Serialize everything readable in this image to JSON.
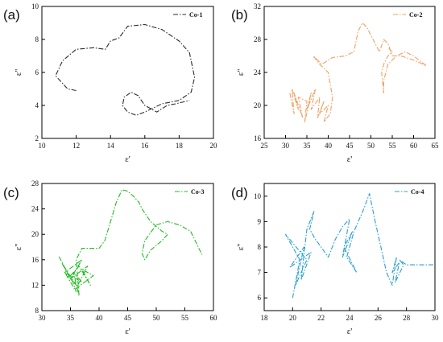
{
  "chart_data": [
    {
      "type": "line",
      "panel_label": "(a)",
      "xlabel": "ε'",
      "ylabel": "ε''",
      "xlim": [
        10,
        20
      ],
      "ylim": [
        2,
        10
      ],
      "xticks": [
        10,
        12,
        14,
        16,
        18,
        20
      ],
      "yticks": [
        2,
        4,
        6,
        8,
        10
      ],
      "series": [
        {
          "name": "Co-1",
          "color": "#2b2b2b",
          "x": [
            12.0,
            11.5,
            10.8,
            11.2,
            12.0,
            13.0,
            13.7,
            14.0,
            14.5,
            15.0,
            16.0,
            17.0,
            18.0,
            18.6,
            18.9,
            18.7,
            18.0,
            17.0,
            16.0,
            15.5,
            15.0,
            14.7,
            14.8,
            15.2,
            15.6,
            16.0,
            16.7,
            17.3,
            17.8,
            18.2,
            18.6
          ],
          "y": [
            4.9,
            5.0,
            5.8,
            6.7,
            7.4,
            7.5,
            7.4,
            7.9,
            8.1,
            8.8,
            8.9,
            8.6,
            7.9,
            7.2,
            5.7,
            4.8,
            4.3,
            4.1,
            3.6,
            3.4,
            3.6,
            4.0,
            4.5,
            4.8,
            4.6,
            4.0,
            3.6,
            4.0,
            4.1,
            4.2,
            4.3
          ]
        }
      ]
    },
    {
      "type": "line",
      "panel_label": "(b)",
      "xlabel": "ε'",
      "ylabel": "ε''",
      "xlim": [
        25,
        65
      ],
      "ylim": [
        16,
        32
      ],
      "xticks": [
        25,
        30,
        35,
        40,
        45,
        50,
        55,
        60,
        65
      ],
      "yticks": [
        16,
        20,
        24,
        28,
        32
      ],
      "series": [
        {
          "name": "Co-2",
          "color": "#f0a060",
          "x": [
            31,
            32,
            31.5,
            33,
            32,
            34,
            33,
            35,
            34.5,
            36,
            35,
            37,
            36,
            38,
            37.5,
            39,
            38,
            40,
            39,
            40.5,
            41,
            40,
            38,
            36.5,
            38.5,
            41,
            44,
            46,
            47,
            48,
            49,
            50,
            51,
            52,
            53,
            54,
            55,
            57,
            60,
            63,
            60,
            58,
            56,
            55,
            54,
            53.5,
            53,
            53,
            52.5,
            53,
            54,
            55,
            54
          ],
          "y": [
            21.5,
            19,
            22,
            19.5,
            21.5,
            18.5,
            21,
            20.5,
            18,
            21.5,
            19.5,
            22,
            19.5,
            21,
            18.5,
            20.5,
            19,
            20,
            18,
            19,
            21,
            24,
            25,
            26,
            25,
            25.8,
            26,
            26.5,
            29,
            30,
            29.5,
            28.5,
            27.5,
            26.5,
            28,
            27.5,
            26,
            26,
            25.5,
            24.8,
            26,
            26.5,
            26,
            25.5,
            25,
            24,
            23,
            21.5,
            24,
            25,
            26,
            26.5,
            27
          ]
        }
      ]
    },
    {
      "type": "line",
      "panel_label": "(c)",
      "xlabel": "ε'",
      "ylabel": "ε''",
      "xlim": [
        30,
        60
      ],
      "ylim": [
        8,
        28
      ],
      "xticks": [
        30,
        35,
        40,
        45,
        50,
        55,
        60
      ],
      "yticks": [
        8,
        12,
        16,
        20,
        24,
        28
      ],
      "series": [
        {
          "name": "Co-3",
          "color": "#22bb22",
          "x": [
            33,
            35,
            33.5,
            36,
            34,
            37,
            35,
            38,
            36,
            39,
            37,
            38.5,
            36.5,
            35,
            36,
            34,
            37,
            35.5,
            36.5,
            36,
            37,
            40,
            41,
            42,
            43,
            44,
            45,
            46,
            47,
            47.5,
            49,
            51,
            52,
            51,
            49,
            48,
            47.5,
            48,
            50,
            52,
            54,
            56,
            58
          ],
          "y": [
            16.5,
            13,
            15.5,
            12,
            14,
            16,
            13,
            15,
            11.5,
            13.5,
            14.5,
            12,
            15,
            13.5,
            11,
            14,
            12.5,
            14,
            10.3,
            16,
            17.8,
            17.8,
            19,
            22,
            25,
            27,
            26.8,
            26,
            25,
            24,
            22,
            20.5,
            20,
            19,
            17.5,
            16,
            17,
            19,
            21.5,
            22,
            21.5,
            20.5,
            16.8
          ]
        }
      ]
    },
    {
      "type": "line",
      "panel_label": "(d)",
      "xlabel": "ε'",
      "ylabel": "ε''",
      "xlim": [
        18,
        30
      ],
      "ylim": [
        5.5,
        10.5
      ],
      "xticks": [
        18,
        20,
        22,
        24,
        26,
        28,
        30
      ],
      "yticks": [
        6,
        7,
        8,
        9,
        10
      ],
      "series": [
        {
          "name": "Co-4",
          "color": "#2a9fd0",
          "x": [
            20,
            20.5,
            19.5,
            21,
            20.2,
            20.8,
            19.8,
            21.3,
            20.6,
            21,
            21.5,
            21.2,
            21.6,
            22,
            22.5,
            23,
            23.5,
            24,
            23.5,
            24.2,
            23.6,
            24.5,
            23.8,
            24.3,
            25,
            25.4,
            25.8,
            26.2,
            26.6,
            27,
            27.3,
            27,
            27.5,
            27.2,
            27.8,
            27.5,
            28,
            29,
            30
          ],
          "y": [
            6.0,
            7.5,
            8.5,
            7.5,
            6.5,
            8.0,
            7.2,
            7.8,
            6.7,
            8.7,
            9.4,
            8.7,
            8.3,
            8.0,
            7.6,
            8.3,
            8.8,
            9.1,
            7.6,
            8.6,
            8.0,
            7.0,
            7.6,
            8.6,
            9.5,
            10.1,
            9.0,
            8.0,
            7.0,
            6.5,
            7.6,
            7.0,
            7.4,
            6.6,
            7.3,
            7.5,
            7.3,
            7.3,
            7.3
          ]
        }
      ]
    }
  ]
}
